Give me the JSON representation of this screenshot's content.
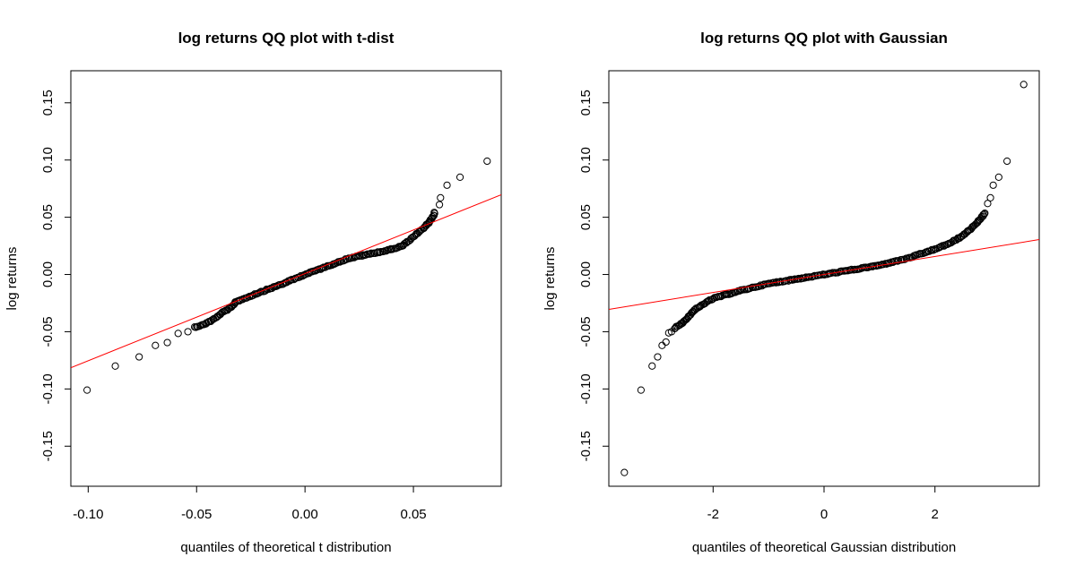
{
  "chart_data": [
    {
      "type": "scatter",
      "title": "log returns QQ plot with t-dist",
      "xlabel": "quantiles of theoretical t distribution",
      "ylabel": "log returns",
      "xlim": [
        -0.108,
        0.0905
      ],
      "ylim": [
        -0.185,
        0.178
      ],
      "x_ticks": [
        -0.1,
        -0.05,
        0.0,
        0.05
      ],
      "x_tick_labels": [
        "-0.10",
        "-0.05",
        "0.00",
        "0.05"
      ],
      "y_ticks": [
        -0.15,
        -0.1,
        -0.05,
        0.0,
        0.05,
        0.1,
        0.15
      ],
      "y_tick_labels": [
        "-0.15",
        "-0.10",
        "-0.05",
        "0.00",
        "0.05",
        "0.10",
        "0.15"
      ],
      "points_color": "#000000",
      "reference_line": {
        "color": "#ff0000",
        "slope": 0.7616,
        "intercept": 0.0008
      },
      "outlier_points": [
        {
          "x": -0.1005,
          "y": -0.101
        },
        {
          "x": -0.0875,
          "y": -0.08
        },
        {
          "x": -0.0765,
          "y": -0.072
        },
        {
          "x": -0.069,
          "y": -0.062
        },
        {
          "x": -0.0635,
          "y": -0.0595
        },
        {
          "x": -0.0585,
          "y": -0.0515
        },
        {
          "x": -0.054,
          "y": -0.05
        },
        {
          "x": 0.084,
          "y": 0.099
        },
        {
          "x": 0.0715,
          "y": 0.085
        },
        {
          "x": 0.0655,
          "y": 0.078
        },
        {
          "x": 0.0625,
          "y": 0.067
        },
        {
          "x": 0.062,
          "y": 0.061
        }
      ],
      "curve_knots": [
        {
          "x": -0.051,
          "y": -0.046
        },
        {
          "x": -0.047,
          "y": -0.044
        },
        {
          "x": -0.042,
          "y": -0.039
        },
        {
          "x": -0.038,
          "y": -0.033
        },
        {
          "x": -0.034,
          "y": -0.029
        },
        {
          "x": -0.032,
          "y": -0.024
        },
        {
          "x": -0.02,
          "y": -0.015
        },
        {
          "x": -0.01,
          "y": -0.008
        },
        {
          "x": 0.0,
          "y": 0.0
        },
        {
          "x": 0.01,
          "y": 0.007
        },
        {
          "x": 0.02,
          "y": 0.014
        },
        {
          "x": 0.03,
          "y": 0.018
        },
        {
          "x": 0.038,
          "y": 0.021
        },
        {
          "x": 0.045,
          "y": 0.025
        },
        {
          "x": 0.05,
          "y": 0.033
        },
        {
          "x": 0.054,
          "y": 0.039
        },
        {
          "x": 0.057,
          "y": 0.045
        },
        {
          "x": 0.059,
          "y": 0.05
        },
        {
          "x": 0.06,
          "y": 0.055
        }
      ]
    },
    {
      "type": "scatter",
      "title": "log returns QQ plot with Gaussian",
      "xlabel": "quantiles of theoretical Gaussian distribution",
      "ylabel": "log returns",
      "xlim": [
        -3.88,
        3.88
      ],
      "ylim": [
        -0.185,
        0.178
      ],
      "x_ticks": [
        -2,
        0,
        2
      ],
      "x_tick_labels": [
        "-2",
        "0",
        "2"
      ],
      "y_ticks": [
        -0.15,
        -0.1,
        -0.05,
        0.0,
        0.05,
        0.1,
        0.15
      ],
      "y_tick_labels": [
        "-0.15",
        "-0.10",
        "-0.05",
        "0.00",
        "0.05",
        "0.10",
        "0.15"
      ],
      "points_color": "#000000",
      "reference_line": {
        "color": "#ff0000",
        "slope": 0.00786,
        "intercept": 0.0
      },
      "outlier_points": [
        {
          "x": -3.6,
          "y": -0.173
        },
        {
          "x": -3.3,
          "y": -0.101
        },
        {
          "x": -3.1,
          "y": -0.08
        },
        {
          "x": -3.0,
          "y": -0.072
        },
        {
          "x": -2.92,
          "y": -0.062
        },
        {
          "x": -2.85,
          "y": -0.059
        },
        {
          "x": -2.8,
          "y": -0.051
        },
        {
          "x": -2.75,
          "y": -0.05
        },
        {
          "x": 3.6,
          "y": 0.166
        },
        {
          "x": 3.3,
          "y": 0.099
        },
        {
          "x": 3.15,
          "y": 0.085
        },
        {
          "x": 3.05,
          "y": 0.078
        },
        {
          "x": 3.0,
          "y": 0.067
        },
        {
          "x": 2.95,
          "y": 0.062
        }
      ],
      "curve_knots": [
        {
          "x": -2.7,
          "y": -0.047
        },
        {
          "x": -2.6,
          "y": -0.044
        },
        {
          "x": -2.5,
          "y": -0.04
        },
        {
          "x": -2.4,
          "y": -0.034
        },
        {
          "x": -2.3,
          "y": -0.03
        },
        {
          "x": -2.15,
          "y": -0.025
        },
        {
          "x": -2.0,
          "y": -0.021
        },
        {
          "x": -1.5,
          "y": -0.014
        },
        {
          "x": -1.0,
          "y": -0.008
        },
        {
          "x": -0.5,
          "y": -0.004
        },
        {
          "x": 0.0,
          "y": 0.0
        },
        {
          "x": 0.5,
          "y": 0.004
        },
        {
          "x": 1.0,
          "y": 0.008
        },
        {
          "x": 1.5,
          "y": 0.014
        },
        {
          "x": 2.0,
          "y": 0.022
        },
        {
          "x": 2.3,
          "y": 0.028
        },
        {
          "x": 2.5,
          "y": 0.034
        },
        {
          "x": 2.7,
          "y": 0.042
        },
        {
          "x": 2.85,
          "y": 0.05
        },
        {
          "x": 2.9,
          "y": 0.055
        }
      ]
    }
  ]
}
